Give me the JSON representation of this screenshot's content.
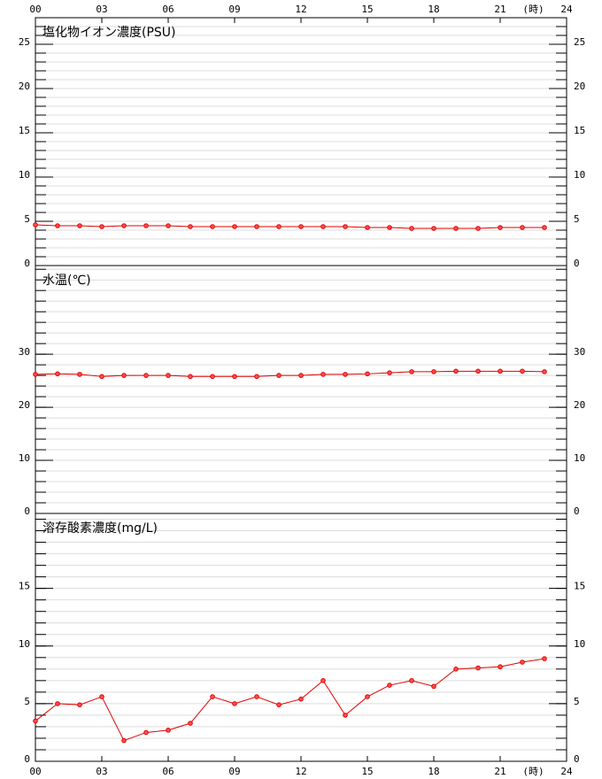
{
  "chart_data": [
    {
      "type": "line",
      "title": "塩化物イオン濃度(PSU)",
      "x_unit": "(時)",
      "x": [
        0,
        1,
        2,
        3,
        4,
        5,
        6,
        7,
        8,
        9,
        10,
        11,
        12,
        13,
        14,
        15,
        16,
        17,
        18,
        19,
        20,
        21,
        22,
        23
      ],
      "xlim": [
        0,
        24
      ],
      "xticks": [
        {
          "value": 0,
          "label": "00"
        },
        {
          "value": 3,
          "label": "03"
        },
        {
          "value": 6,
          "label": "06"
        },
        {
          "value": 9,
          "label": "09"
        },
        12,
        15,
        18,
        21,
        24
      ],
      "series": [
        {
          "color": "#e00000",
          "values": [
            4.6,
            4.5,
            4.5,
            4.4,
            4.5,
            4.5,
            4.5,
            4.4,
            4.4,
            4.4,
            4.4,
            4.4,
            4.4,
            4.4,
            4.4,
            4.3,
            4.3,
            4.2,
            4.2,
            4.2,
            4.2,
            4.3,
            4.3,
            4.3
          ]
        }
      ],
      "ylim": [
        0,
        28
      ],
      "yticks": [
        0,
        5,
        10,
        15,
        20,
        25
      ],
      "minor_grid": 1
    },
    {
      "type": "line",
      "title": "水温(℃)",
      "x": [
        0,
        1,
        2,
        3,
        4,
        5,
        6,
        7,
        8,
        9,
        10,
        11,
        12,
        13,
        14,
        15,
        16,
        17,
        18,
        19,
        20,
        21,
        22,
        23
      ],
      "xlim": [
        0,
        24
      ],
      "series": [
        {
          "color": "#e00000",
          "values": [
            26.2,
            26.3,
            26.2,
            25.8,
            26.0,
            26.0,
            26.0,
            25.8,
            25.8,
            25.8,
            25.8,
            26.0,
            26.0,
            26.2,
            26.2,
            26.3,
            26.5,
            26.7,
            26.7,
            26.8,
            26.8,
            26.8,
            26.8,
            26.7
          ]
        }
      ],
      "ylim": [
        0,
        46.7
      ],
      "yticks": [
        0,
        10,
        20,
        30
      ],
      "minor_grid": 2
    },
    {
      "type": "line",
      "title": "溶存酸素濃度(mg/L)",
      "x_unit": "(時)",
      "x": [
        0,
        1,
        2,
        3,
        4,
        5,
        6,
        7,
        8,
        9,
        10,
        11,
        12,
        13,
        14,
        15,
        16,
        17,
        18,
        19,
        20,
        21,
        22,
        23
      ],
      "xlim": [
        0,
        24
      ],
      "xticks": [
        {
          "value": 0,
          "label": "00"
        },
        {
          "value": 3,
          "label": "03"
        },
        {
          "value": 6,
          "label": "06"
        },
        {
          "value": 9,
          "label": "09"
        },
        12,
        15,
        18,
        21,
        24
      ],
      "series": [
        {
          "color": "#e00000",
          "values": [
            3.5,
            5.0,
            4.9,
            5.6,
            1.8,
            2.5,
            2.7,
            3.3,
            5.6,
            5.0,
            5.6,
            4.9,
            5.4,
            7.0,
            4.0,
            5.6,
            6.6,
            7.0,
            6.5,
            8.0,
            8.1,
            8.2,
            8.6,
            8.9
          ]
        }
      ],
      "ylim": [
        0,
        21.5
      ],
      "yticks": [
        0,
        5,
        10,
        15
      ],
      "minor_grid": 1
    }
  ]
}
